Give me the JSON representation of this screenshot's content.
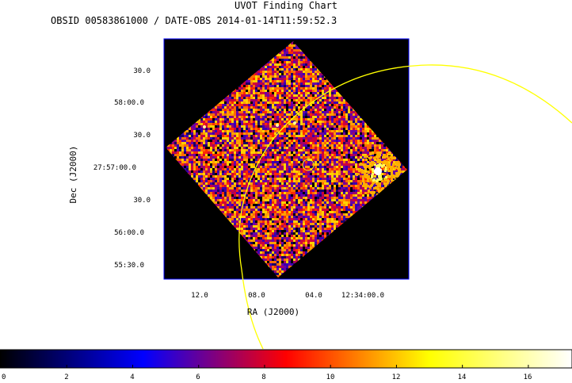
{
  "chart_data": {
    "type": "heatmap",
    "title": "UVOT Finding Chart",
    "subtitle": "OBSID 00583861000 / DATE-OBS 2014-01-14T11:59:52.3",
    "xlabel": "RA (J2000)",
    "ylabel": "Dec (J2000)",
    "x_ticks": [
      "12.0",
      "08.0",
      "04.0",
      "12:34:00.0"
    ],
    "y_ticks": [
      "30.0",
      "58:00.0",
      "30.0",
      "27:57:00.0",
      "30.0",
      "56:00.0",
      "55:30.0"
    ],
    "colorbar": {
      "range": [
        0,
        17.3
      ],
      "ticks": [
        "0",
        "2",
        "4",
        "6",
        "8",
        "10",
        "12",
        "14",
        "16"
      ],
      "colormap": [
        "#000000",
        "#0000ff",
        "#ff0000",
        "#ffff00",
        "#ffffff"
      ]
    },
    "grid": false
  },
  "colors": {
    "background": "#000000",
    "circle": "#ffff00",
    "frame": "#0000ff"
  }
}
